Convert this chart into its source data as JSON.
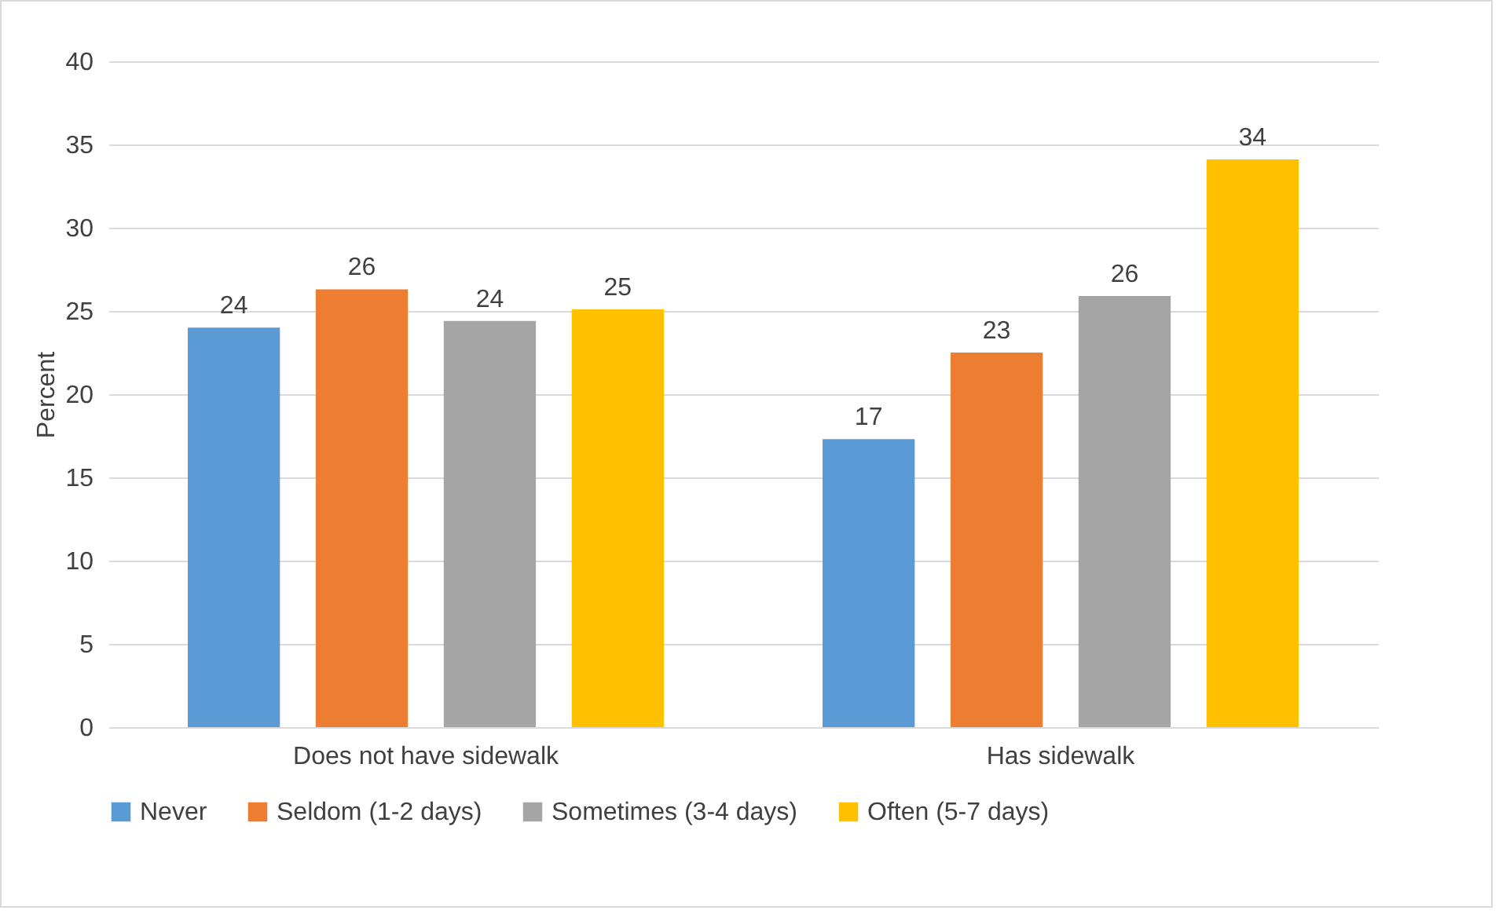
{
  "chart_data": {
    "type": "bar",
    "ylabel": "Percent",
    "categories": [
      "Does not have sidewalk",
      "Has sidewalk"
    ],
    "series": [
      {
        "name": "Never",
        "color": "#5b9bd5",
        "values": [
          24.0,
          17.3
        ],
        "value_labels": [
          "24",
          "17"
        ]
      },
      {
        "name": "Seldom (1-2 days)",
        "color": "#ed7d31",
        "values": [
          26.3,
          22.5
        ],
        "value_labels": [
          "26",
          "23"
        ]
      },
      {
        "name": "Sometimes (3-4 days)",
        "color": "#a5a5a5",
        "values": [
          24.4,
          25.9
        ],
        "value_labels": [
          "24",
          "26"
        ]
      },
      {
        "name": "Often (5-7 days)",
        "color": "#ffc000",
        "values": [
          25.1,
          34.1
        ],
        "value_labels": [
          "25",
          "34"
        ]
      }
    ],
    "ylim": [
      0,
      40
    ],
    "yticks": [
      0,
      5,
      10,
      15,
      20,
      25,
      30,
      35,
      40
    ],
    "grid": "y",
    "legend": "bottom"
  }
}
